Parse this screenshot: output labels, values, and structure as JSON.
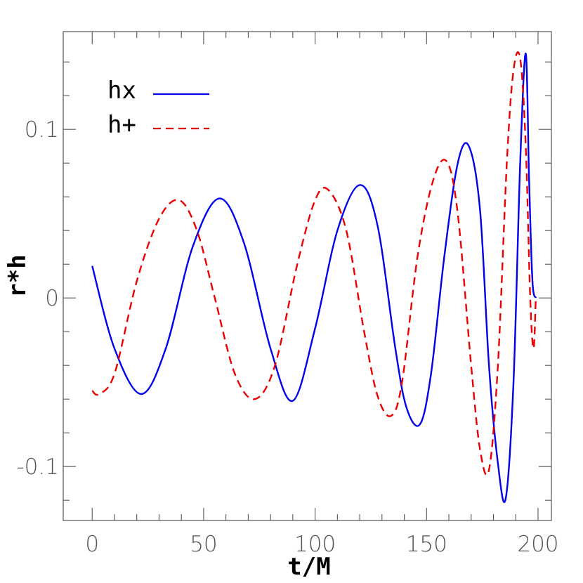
{
  "chart_data": {
    "type": "line",
    "title": "",
    "xlabel": "t/M",
    "ylabel": "r*h",
    "xlim": [
      -13,
      206
    ],
    "ylim": [
      -0.132,
      0.158
    ],
    "x_ticks": [
      0,
      50,
      100,
      150,
      200
    ],
    "x_tick_labels": [
      "0",
      "50",
      "100",
      "150",
      "200"
    ],
    "y_ticks": [
      -0.1,
      0,
      0.1
    ],
    "y_tick_labels": [
      "-0.1",
      "0",
      "0.1"
    ],
    "grid": false,
    "legend": "top-left",
    "series": [
      {
        "name": "hx",
        "color": "#0000ee",
        "style": "solid",
        "x": [
          0,
          10,
          22,
          33,
          45,
          57,
          68,
          80,
          90,
          100,
          110,
          120,
          128,
          136,
          141,
          147,
          152,
          158,
          164,
          169,
          174,
          178,
          182,
          185.5,
          189,
          192,
          194.5,
          196,
          197.5,
          199
        ],
        "y": [
          0.019,
          -0.03,
          -0.057,
          -0.03,
          0.03,
          0.059,
          0.033,
          -0.03,
          -0.061,
          -0.018,
          0.04,
          0.067,
          0.043,
          -0.03,
          -0.065,
          -0.075,
          -0.045,
          0.025,
          0.08,
          0.09,
          0.052,
          -0.04,
          -0.098,
          -0.119,
          -0.05,
          0.08,
          0.145,
          0.07,
          0.01,
          0.0
        ]
      },
      {
        "name": "h+",
        "color": "#ee0000",
        "style": "dashed",
        "x": [
          0,
          3,
          10,
          20,
          30,
          39,
          47,
          55,
          64,
          73,
          82,
          92,
          100,
          106,
          114,
          122,
          128,
          134,
          139,
          146,
          153,
          159,
          164,
          170,
          174,
          178,
          182,
          186,
          189,
          192,
          194.5,
          196.5,
          198,
          199
        ],
        "y": [
          -0.055,
          -0.057,
          -0.045,
          0.01,
          0.047,
          0.058,
          0.04,
          0.0,
          -0.045,
          -0.06,
          -0.04,
          0.02,
          0.058,
          0.064,
          0.04,
          -0.02,
          -0.058,
          -0.07,
          -0.05,
          0.025,
          0.07,
          0.081,
          0.05,
          -0.04,
          -0.09,
          -0.102,
          -0.04,
          0.08,
          0.135,
          0.142,
          0.09,
          0.0,
          -0.03,
          0.0
        ]
      }
    ]
  }
}
